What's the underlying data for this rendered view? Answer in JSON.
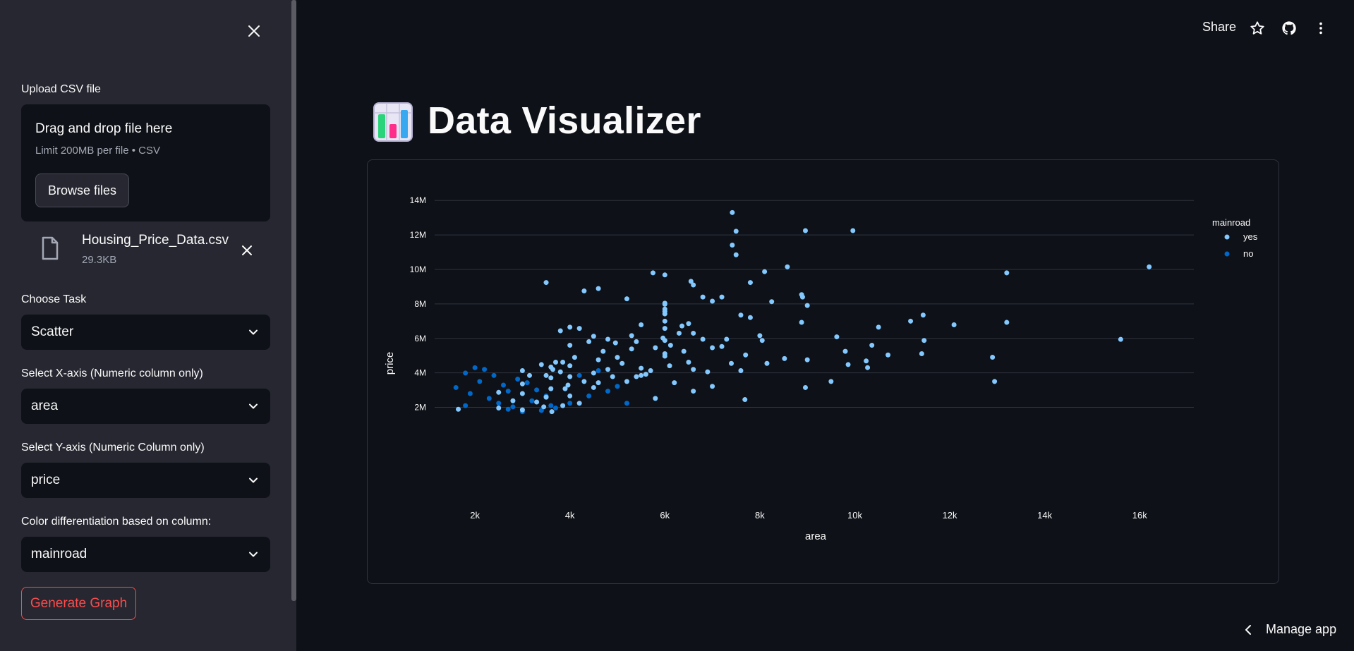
{
  "sidebar": {
    "upload_label": "Upload CSV file",
    "dropzone": {
      "title": "Drag and drop file here",
      "limit": "Limit 200MB per file • CSV",
      "browse_label": "Browse files"
    },
    "file": {
      "name": "Housing_Price_Data.csv",
      "size": "29.3KB"
    },
    "task_label": "Choose Task",
    "task_value": "Scatter",
    "x_label": "Select X-axis (Numeric column only)",
    "x_value": "area",
    "y_label": "Select Y-axis (Numeric Column only)",
    "y_value": "price",
    "color_label": "Color differentiation based on column:",
    "color_value": "mainroad",
    "generate_label": "Generate Graph"
  },
  "header": {
    "share_label": "Share",
    "icons": [
      "star-icon",
      "github-icon",
      "more-vertical-icon"
    ]
  },
  "main": {
    "title_emoji": "bar-chart-icon",
    "title": "Data Visualizer"
  },
  "footer": {
    "manage_app_label": "Manage app"
  },
  "colors": {
    "yes": "#83c9ff",
    "no": "#0068c9",
    "accent": "#ff4b4b"
  },
  "chart_data": {
    "type": "scatter",
    "xlabel": "area",
    "ylabel": "price",
    "xlim": [
      1300,
      17200
    ],
    "ylim": [
      1000000,
      14500000
    ],
    "xticks": [
      2000,
      4000,
      6000,
      8000,
      10000,
      12000,
      14000,
      16000
    ],
    "xtick_labels": [
      "2k",
      "4k",
      "6k",
      "8k",
      "10k",
      "12k",
      "14k",
      "16k"
    ],
    "yticks": [
      2000000,
      4000000,
      6000000,
      8000000,
      10000000,
      12000000,
      14000000
    ],
    "ytick_labels": [
      "2M",
      "4M",
      "6M",
      "8M",
      "10M",
      "12M",
      "14M"
    ],
    "grid": "horizontal",
    "legend": {
      "title": "mainroad",
      "position": "top-right"
    },
    "series": [
      {
        "name": "yes",
        "points": [
          [
            7420,
            13300000
          ],
          [
            8960,
            12250000
          ],
          [
            9960,
            12250000
          ],
          [
            7500,
            12215000
          ],
          [
            7420,
            11410000
          ],
          [
            7500,
            10850000
          ],
          [
            16200,
            10150000
          ],
          [
            8580,
            10150000
          ],
          [
            13200,
            9800000
          ],
          [
            8100,
            9870000
          ],
          [
            5750,
            9800000
          ],
          [
            6000,
            9681000
          ],
          [
            3500,
            9240000
          ],
          [
            6550,
            9310000
          ],
          [
            7800,
            9240000
          ],
          [
            6600,
            9100000
          ],
          [
            4600,
            8890000
          ],
          [
            4300,
            8750000
          ],
          [
            5200,
            8295000
          ],
          [
            6800,
            8400000
          ],
          [
            7200,
            8400000
          ],
          [
            8880,
            8540000
          ],
          [
            8900,
            8400000
          ],
          [
            7000,
            8160000
          ],
          [
            6000,
            8043000
          ],
          [
            8250,
            8130000
          ],
          [
            6000,
            7980000
          ],
          [
            7600,
            7350000
          ],
          [
            9000,
            7910000
          ],
          [
            6000,
            7700000
          ],
          [
            11440,
            7350000
          ],
          [
            11175,
            7000000
          ],
          [
            13200,
            6930000
          ],
          [
            8880,
            6930000
          ],
          [
            10500,
            6650000
          ],
          [
            12090,
            6790000
          ],
          [
            6000,
            7560000
          ],
          [
            6000,
            7420000
          ],
          [
            7800,
            7210000
          ],
          [
            6000,
            7000000
          ],
          [
            6500,
            6860000
          ],
          [
            5500,
            6790000
          ],
          [
            6360,
            6720000
          ],
          [
            4000,
            6650000
          ],
          [
            4200,
            6580000
          ],
          [
            3800,
            6440000
          ],
          [
            4500,
            6125000
          ],
          [
            6600,
            6300000
          ],
          [
            9620,
            6090000
          ],
          [
            8000,
            6160000
          ],
          [
            5960,
            6020000
          ],
          [
            4800,
            5950000
          ],
          [
            15600,
            5943000
          ],
          [
            6000,
            5880000
          ],
          [
            11460,
            5880000
          ],
          [
            8050,
            5880000
          ],
          [
            5400,
            5810000
          ],
          [
            10360,
            5600000
          ],
          [
            4960,
            5740000
          ],
          [
            7200,
            5530000
          ],
          [
            7000,
            5460000
          ],
          [
            5300,
            5390000
          ],
          [
            9800,
            5250000
          ],
          [
            11410,
            5110000
          ],
          [
            7700,
            5040000
          ],
          [
            10700,
            5040000
          ],
          [
            6000,
            4970000
          ],
          [
            12900,
            4907000
          ],
          [
            8520,
            4830000
          ],
          [
            9000,
            4760000
          ],
          [
            4600,
            4760000
          ],
          [
            3850,
            4620000
          ],
          [
            10240,
            4690000
          ],
          [
            8150,
            4550000
          ],
          [
            9860,
            4480000
          ],
          [
            4000,
            4410000
          ],
          [
            3600,
            4340000
          ],
          [
            6600,
            4200000
          ],
          [
            5500,
            4270000
          ],
          [
            3640,
            4200000
          ],
          [
            3000,
            4130000
          ],
          [
            10269,
            4305000
          ],
          [
            7600,
            4130000
          ],
          [
            3800,
            4060000
          ],
          [
            4500,
            3990000
          ],
          [
            3150,
            3850000
          ],
          [
            5500,
            3850000
          ],
          [
            4000,
            3780000
          ],
          [
            3600,
            3710000
          ],
          [
            9500,
            3500000
          ],
          [
            12944,
            3500000
          ],
          [
            5200,
            3500000
          ],
          [
            4600,
            3430000
          ],
          [
            3000,
            3360000
          ],
          [
            3960,
            3290000
          ],
          [
            7000,
            3220000
          ],
          [
            4500,
            3150000
          ],
          [
            8960,
            3150000
          ],
          [
            3600,
            3080000
          ],
          [
            6600,
            2940000
          ],
          [
            2500,
            2870000
          ],
          [
            3000,
            2800000
          ],
          [
            4000,
            2660000
          ],
          [
            3500,
            2590000
          ],
          [
            5800,
            2520000
          ],
          [
            7686,
            2450000
          ],
          [
            2800,
            2380000
          ],
          [
            3300,
            2310000
          ],
          [
            4200,
            2240000
          ],
          [
            3620,
            1750000
          ],
          [
            3850,
            2100000
          ],
          [
            3450,
            2030000
          ],
          [
            2500,
            1960000
          ],
          [
            1650,
            1890000
          ],
          [
            3000,
            1855000
          ],
          [
            6300,
            6300000
          ],
          [
            6120,
            5600000
          ],
          [
            5000,
            4900000
          ],
          [
            4800,
            4200000
          ],
          [
            5400,
            3780000
          ],
          [
            6800,
            5950000
          ],
          [
            6400,
            5250000
          ],
          [
            7300,
            5950000
          ],
          [
            3400,
            4480000
          ],
          [
            3500,
            3850000
          ],
          [
            3700,
            4620000
          ],
          [
            4100,
            4900000
          ],
          [
            4300,
            3500000
          ],
          [
            4700,
            5250000
          ],
          [
            5100,
            4550000
          ],
          [
            5600,
            3920000
          ],
          [
            6200,
            3430000
          ],
          [
            6500,
            4620000
          ],
          [
            6900,
            4060000
          ],
          [
            7400,
            4550000
          ],
          [
            3900,
            3080000
          ],
          [
            4000,
            5600000
          ],
          [
            4400,
            5810000
          ],
          [
            4900,
            3780000
          ],
          [
            5300,
            6160000
          ],
          [
            5700,
            4130000
          ],
          [
            5800,
            5460000
          ],
          [
            6000,
            6580000
          ],
          [
            6000,
            5110000
          ],
          [
            6100,
            4410000
          ]
        ]
      },
      {
        "name": "no",
        "points": [
          [
            2000,
            4300000
          ],
          [
            2200,
            4200000
          ],
          [
            1800,
            3990000
          ],
          [
            2100,
            3500000
          ],
          [
            2400,
            3850000
          ],
          [
            2600,
            3290000
          ],
          [
            2700,
            2940000
          ],
          [
            2300,
            2520000
          ],
          [
            1600,
            3150000
          ],
          [
            1900,
            2800000
          ],
          [
            2500,
            2240000
          ],
          [
            1800,
            2100000
          ],
          [
            3000,
            1750000
          ],
          [
            2800,
            2030000
          ],
          [
            3200,
            2380000
          ],
          [
            3500,
            2660000
          ],
          [
            3300,
            3010000
          ],
          [
            3100,
            3430000
          ],
          [
            2900,
            3640000
          ],
          [
            3600,
            2100000
          ],
          [
            4000,
            2240000
          ],
          [
            4400,
            2660000
          ],
          [
            4800,
            2940000
          ],
          [
            5200,
            2240000
          ],
          [
            5000,
            3220000
          ],
          [
            3700,
            1960000
          ],
          [
            3400,
            1820000
          ],
          [
            2700,
            1890000
          ],
          [
            4200,
            3850000
          ],
          [
            4600,
            4130000
          ]
        ]
      }
    ]
  }
}
